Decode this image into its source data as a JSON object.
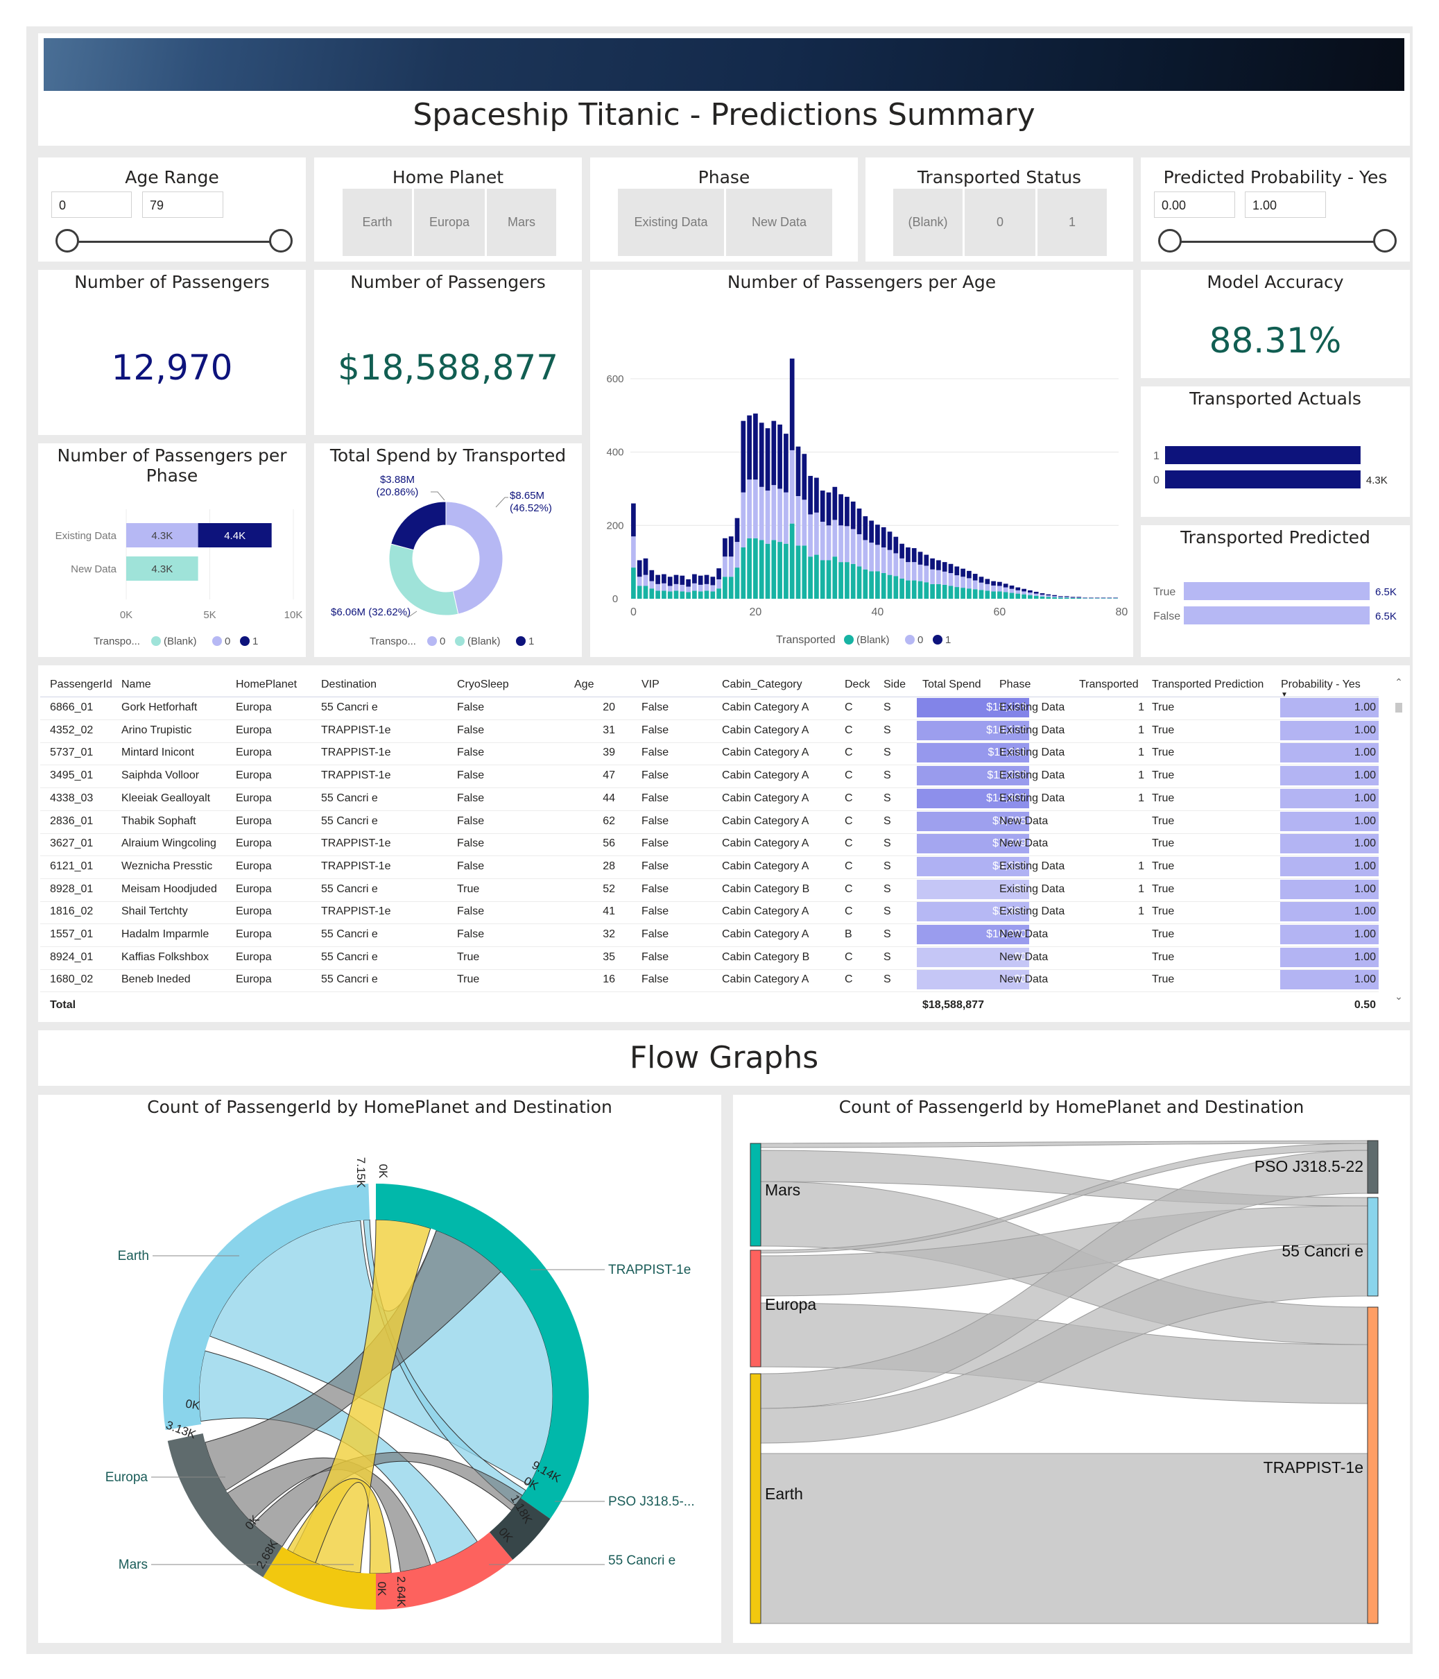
{
  "title": "Spaceship Titanic - Predictions Summary",
  "slicers": {
    "age": {
      "title": "Age Range",
      "min": "0",
      "max": "79"
    },
    "home_planet": {
      "title": "Home Planet",
      "options": [
        "Earth",
        "Europa",
        "Mars"
      ]
    },
    "phase": {
      "title": "Phase",
      "options": [
        "Existing Data",
        "New Data"
      ]
    },
    "transported_status": {
      "title": "Transported Status",
      "options": [
        "(Blank)",
        "0",
        "1"
      ]
    },
    "probability": {
      "title": "Predicted Probability - Yes",
      "min": "0.00",
      "max": "1.00"
    }
  },
  "kpis": {
    "passengers": {
      "title": "Number of Passengers",
      "value": "12,970"
    },
    "spend": {
      "title": "Number of Passengers",
      "value": "$18,588,877"
    },
    "accuracy": {
      "title": "Model Accuracy",
      "value": "88.31%"
    }
  },
  "colors": {
    "teal": "#17b3a3",
    "lavender": "#b6b8f4",
    "navy": "#0d137c",
    "mint": "#9fe3d9",
    "kpi_navy": "#0d137c",
    "kpi_green": "#115e52"
  },
  "phase_chart": {
    "title": "Number of Passengers per Phase",
    "categories": [
      "Existing Data",
      "New Data"
    ],
    "axis_ticks": [
      "0K",
      "5K",
      "10K"
    ],
    "bars": [
      {
        "category": "Existing Data",
        "segments": [
          {
            "series": "0",
            "value": 4300,
            "label": "4.3K"
          },
          {
            "series": "1",
            "value": 4400,
            "label": "4.4K"
          }
        ]
      },
      {
        "category": "New Data",
        "segments": [
          {
            "series": "(Blank)",
            "value": 4300,
            "label": "4.3K"
          }
        ]
      }
    ],
    "legend_title": "Transpo...",
    "legend": [
      "(Blank)",
      "0",
      "1"
    ]
  },
  "spend_donut": {
    "title": "Total Spend by Transported",
    "slices": [
      {
        "name": "0",
        "value": 8.65,
        "label": "$8.65M\n(46.52%)",
        "color": "#b6b8f4"
      },
      {
        "name": "(Blank)",
        "value": 6.06,
        "label": "$6.06M (32.62%)",
        "color": "#9fe3d9"
      },
      {
        "name": "1",
        "value": 3.88,
        "label": "$3.88M\n(20.86%)",
        "color": "#0d137c"
      }
    ],
    "legend_title": "Transpo...",
    "legend": [
      "0",
      "(Blank)",
      "1"
    ]
  },
  "chart_data": {
    "type": "bar",
    "title": "Number of Passengers per Age",
    "xlabel": "",
    "ylabel": "",
    "x_ticks": [
      "0",
      "20",
      "40",
      "60",
      "80"
    ],
    "y_ticks": [
      "0",
      "200",
      "400",
      "600"
    ],
    "ylim": [
      0,
      700
    ],
    "x": [
      0,
      1,
      2,
      3,
      4,
      5,
      6,
      7,
      8,
      9,
      10,
      11,
      12,
      13,
      14,
      15,
      16,
      17,
      18,
      19,
      20,
      21,
      22,
      23,
      24,
      25,
      26,
      27,
      28,
      29,
      30,
      31,
      32,
      33,
      34,
      35,
      36,
      37,
      38,
      39,
      40,
      41,
      42,
      43,
      44,
      45,
      46,
      47,
      48,
      49,
      50,
      51,
      52,
      53,
      54,
      55,
      56,
      57,
      58,
      59,
      60,
      61,
      62,
      63,
      64,
      65,
      66,
      67,
      68,
      69,
      70,
      71,
      72,
      73,
      74,
      75,
      76,
      77,
      78,
      79
    ],
    "stacked": true,
    "legend_title": "Transported",
    "series": [
      {
        "name": "(Blank)",
        "color": "#17b3a3",
        "values": [
          85,
          35,
          35,
          28,
          22,
          22,
          20,
          22,
          20,
          18,
          22,
          20,
          22,
          20,
          28,
          60,
          60,
          85,
          140,
          165,
          165,
          160,
          150,
          160,
          155,
          150,
          205,
          145,
          145,
          115,
          120,
          105,
          105,
          115,
          100,
          100,
          95,
          88,
          80,
          75,
          75,
          70,
          65,
          62,
          55,
          50,
          50,
          48,
          45,
          40,
          40,
          38,
          35,
          32,
          30,
          28,
          26,
          24,
          22,
          20,
          20,
          18,
          16,
          14,
          12,
          10,
          8,
          6,
          5,
          4,
          3,
          3,
          2,
          2,
          1,
          1,
          1,
          1,
          1,
          1
        ]
      },
      {
        "name": "0",
        "color": "#b6b8f4",
        "values": [
          85,
          25,
          30,
          20,
          18,
          20,
          15,
          18,
          18,
          15,
          20,
          18,
          18,
          17,
          25,
          55,
          55,
          70,
          150,
          160,
          160,
          145,
          145,
          150,
          145,
          140,
          200,
          135,
          125,
          115,
          115,
          105,
          95,
          100,
          100,
          98,
          95,
          88,
          80,
          78,
          72,
          70,
          68,
          62,
          55,
          50,
          50,
          45,
          45,
          40,
          38,
          36,
          35,
          32,
          30,
          28,
          24,
          20,
          18,
          16,
          15,
          13,
          11,
          9,
          8,
          7,
          6,
          5,
          4,
          3,
          2,
          2,
          1,
          1,
          1,
          1,
          1,
          1,
          1,
          1
        ]
      },
      {
        "name": "1",
        "color": "#0d137c",
        "values": [
          90,
          45,
          45,
          30,
          25,
          25,
          25,
          25,
          25,
          20,
          25,
          25,
          25,
          23,
          30,
          50,
          55,
          65,
          195,
          175,
          180,
          175,
          170,
          175,
          175,
          160,
          250,
          135,
          125,
          105,
          95,
          85,
          90,
          90,
          85,
          80,
          75,
          70,
          65,
          60,
          55,
          55,
          50,
          45,
          40,
          40,
          38,
          35,
          30,
          30,
          27,
          26,
          25,
          24,
          22,
          20,
          18,
          16,
          14,
          12,
          11,
          10,
          9,
          8,
          7,
          6,
          5,
          4,
          3,
          3,
          2,
          2,
          2,
          2,
          1,
          1,
          1,
          1,
          1,
          1
        ]
      }
    ]
  },
  "transported_actuals": {
    "title": "Transported Actuals",
    "bars": [
      {
        "label": "1",
        "value": 4300,
        "text": ""
      },
      {
        "label": "0",
        "value": 4300,
        "text": "4.3K"
      }
    ]
  },
  "transported_predicted": {
    "title": "Transported Predicted",
    "bars": [
      {
        "label": "True",
        "value": 6500,
        "text": "6.5K"
      },
      {
        "label": "False",
        "value": 6500,
        "text": "6.5K"
      }
    ]
  },
  "table": {
    "columns": [
      "PassengerId",
      "Name",
      "HomePlanet",
      "Destination",
      "CryoSleep",
      "Age",
      "VIP",
      "Cabin_Category",
      "Deck",
      "Side",
      "Total Spend",
      "Phase",
      "Transported",
      "Transported Prediction",
      "Probability - Yes"
    ],
    "rows": [
      [
        "6866_01",
        "Gork Hetforhaft",
        "Europa",
        "55 Cancri e",
        "False",
        "20",
        "False",
        "Cabin Category A",
        "C",
        "S",
        "$18,128",
        "Existing Data",
        "1",
        "True",
        "1.00"
      ],
      [
        "4352_02",
        "Arino Trupistic",
        "Europa",
        "TRAPPIST-1e",
        "False",
        "31",
        "False",
        "Cabin Category A",
        "C",
        "S",
        "$10,174",
        "Existing Data",
        "1",
        "True",
        "1.00"
      ],
      [
        "5737_01",
        "Mintard Inicont",
        "Europa",
        "TRAPPIST-1e",
        "False",
        "39",
        "False",
        "Cabin Category A",
        "C",
        "S",
        "$11,911",
        "Existing Data",
        "1",
        "True",
        "1.00"
      ],
      [
        "3495_01",
        "Saiphda Volloor",
        "Europa",
        "TRAPPIST-1e",
        "False",
        "47",
        "False",
        "Cabin Category A",
        "C",
        "S",
        "$11,032",
        "Existing Data",
        "1",
        "True",
        "1.00"
      ],
      [
        "4338_03",
        "Kleeiak Gealloyalt",
        "Europa",
        "55 Cancri e",
        "False",
        "44",
        "False",
        "Cabin Category A",
        "C",
        "S",
        "$14,807",
        "Existing Data",
        "1",
        "True",
        "1.00"
      ],
      [
        "2836_01",
        "Thabik Sophaft",
        "Europa",
        "55 Cancri e",
        "False",
        "62",
        "False",
        "Cabin Category A",
        "C",
        "S",
        "$9,785",
        "New Data",
        "",
        "True",
        "1.00"
      ],
      [
        "3627_01",
        "Alraium Wingcoling",
        "Europa",
        "TRAPPIST-1e",
        "False",
        "56",
        "False",
        "Cabin Category A",
        "C",
        "S",
        "$7,749",
        "New Data",
        "",
        "True",
        "1.00"
      ],
      [
        "6121_01",
        "Weznicha Presstic",
        "Europa",
        "TRAPPIST-1e",
        "False",
        "28",
        "False",
        "Cabin Category A",
        "C",
        "S",
        "$4,622",
        "Existing Data",
        "1",
        "True",
        "1.00"
      ],
      [
        "8928_01",
        "Meisam Hoodjuded",
        "Europa",
        "55 Cancri e",
        "True",
        "52",
        "False",
        "Cabin Category B",
        "C",
        "S",
        "$0",
        "Existing Data",
        "1",
        "True",
        "1.00"
      ],
      [
        "1816_02",
        "Shail Tertchty",
        "Europa",
        "TRAPPIST-1e",
        "False",
        "41",
        "False",
        "Cabin Category A",
        "C",
        "S",
        "$2,364",
        "Existing Data",
        "1",
        "True",
        "1.00"
      ],
      [
        "1557_01",
        "Hadalm Imparmle",
        "Europa",
        "55 Cancri e",
        "False",
        "32",
        "False",
        "Cabin Category A",
        "B",
        "S",
        "$10,920",
        "New Data",
        "",
        "True",
        "1.00"
      ],
      [
        "8924_01",
        "Kaffias Folkshbox",
        "Europa",
        "55 Cancri e",
        "True",
        "35",
        "False",
        "Cabin Category B",
        "C",
        "S",
        "$0",
        "New Data",
        "",
        "True",
        "1.00"
      ],
      [
        "1680_02",
        "Beneb Ineded",
        "Europa",
        "55 Cancri e",
        "True",
        "16",
        "False",
        "Cabin Category A",
        "C",
        "S",
        "$0",
        "New Data",
        "",
        "True",
        "1.00"
      ]
    ],
    "spend_fraction": [
      1.0,
      0.56,
      0.66,
      0.61,
      0.82,
      0.54,
      0.43,
      0.25,
      0.0,
      0.13,
      0.6,
      0.0,
      0.0
    ],
    "total_label": "Total",
    "total_spend": "$18,588,877",
    "total_prob": "0.50"
  },
  "flow_title": "Flow Graphs",
  "chord": {
    "title": "Count of PassengerId by HomePlanet and Destination",
    "labels": {
      "earth": "Earth",
      "europa": "Europa",
      "mars": "Mars",
      "trappist": "TRAPPIST-1e",
      "pso": "PSO J318.5-...",
      "cancri": "55 Cancri e"
    },
    "ticks": [
      "7.15K",
      "0K",
      "0K",
      "3.13K",
      "0K",
      "2.68K",
      "0K",
      "2.64K",
      "0K",
      "1.18K",
      "0K",
      "9.14K"
    ]
  },
  "sankey": {
    "title": "Count of PassengerId by HomePlanet and Destination",
    "sources": [
      "Mars",
      "Europa",
      "Earth"
    ],
    "targets": [
      "PSO J318.5-22",
      "55 Cancri e",
      "TRAPPIST-1e"
    ]
  }
}
